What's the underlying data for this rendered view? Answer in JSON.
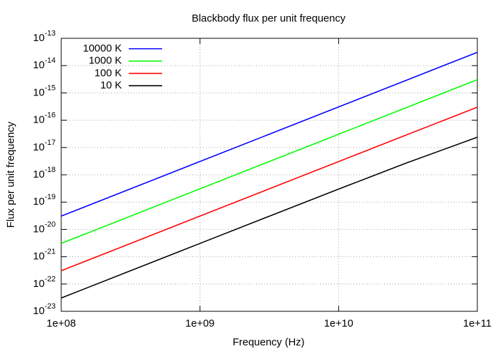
{
  "chart_data": {
    "type": "line",
    "title": "Blackbody flux per unit frequency",
    "x_label": "Frequency (Hz)",
    "y_label": "Flux per unit frequency",
    "x": [
      100000000.0,
      300000000.0,
      1000000000.0,
      3000000000.0,
      10000000000.0,
      30000000000.0,
      100000000000.0
    ],
    "series": [
      {
        "name": "10000 K",
        "color": "#0000ff",
        "values": [
          3.07e-20,
          2.76e-19,
          3.07e-18,
          2.76e-17,
          3.07e-16,
          2.76e-15,
          3.07e-14
        ]
      },
      {
        "name": "1000 K",
        "color": "#00ff00",
        "values": [
          3.07e-21,
          2.76e-20,
          3.07e-19,
          2.76e-18,
          3.07e-17,
          2.76e-16,
          3.06e-15
        ]
      },
      {
        "name": "100 K",
        "color": "#ff0000",
        "values": [
          3.07e-22,
          2.76e-21,
          3.07e-20,
          2.76e-19,
          3.06e-18,
          2.74e-17,
          3e-16
        ]
      },
      {
        "name": "10 K",
        "color": "#000000",
        "values": [
          3.07e-23,
          2.76e-22,
          3.06e-21,
          2.74e-20,
          3e-19,
          2.57e-18,
          2.39e-17
        ]
      }
    ],
    "xlim": [
      100000000.0,
      100000000000.0
    ],
    "ylim": [
      1e-23,
      1e-13
    ],
    "x_log": true,
    "y_log": true,
    "xticks": [
      {
        "value": 100000000.0,
        "label": "1e+08"
      },
      {
        "value": 1000000000.0,
        "label": "1e+09"
      },
      {
        "value": 10000000000.0,
        "label": "1e+10"
      },
      {
        "value": 100000000000.0,
        "label": "1e+11"
      }
    ],
    "yticks": [
      {
        "value": 1e-23,
        "label": "10-23"
      },
      {
        "value": 1e-22,
        "label": "10-22"
      },
      {
        "value": 1e-21,
        "label": "10-21"
      },
      {
        "value": 1e-20,
        "label": "10-20"
      },
      {
        "value": 1e-19,
        "label": "10-19"
      },
      {
        "value": 1e-18,
        "label": "10-18"
      },
      {
        "value": 1e-17,
        "label": "10-17"
      },
      {
        "value": 1e-16,
        "label": "10-16"
      },
      {
        "value": 1e-15,
        "label": "10-15"
      },
      {
        "value": 1e-14,
        "label": "10-14"
      },
      {
        "value": 1e-13,
        "label": "10-13"
      }
    ],
    "grid": true,
    "legend_position": "top-left"
  }
}
